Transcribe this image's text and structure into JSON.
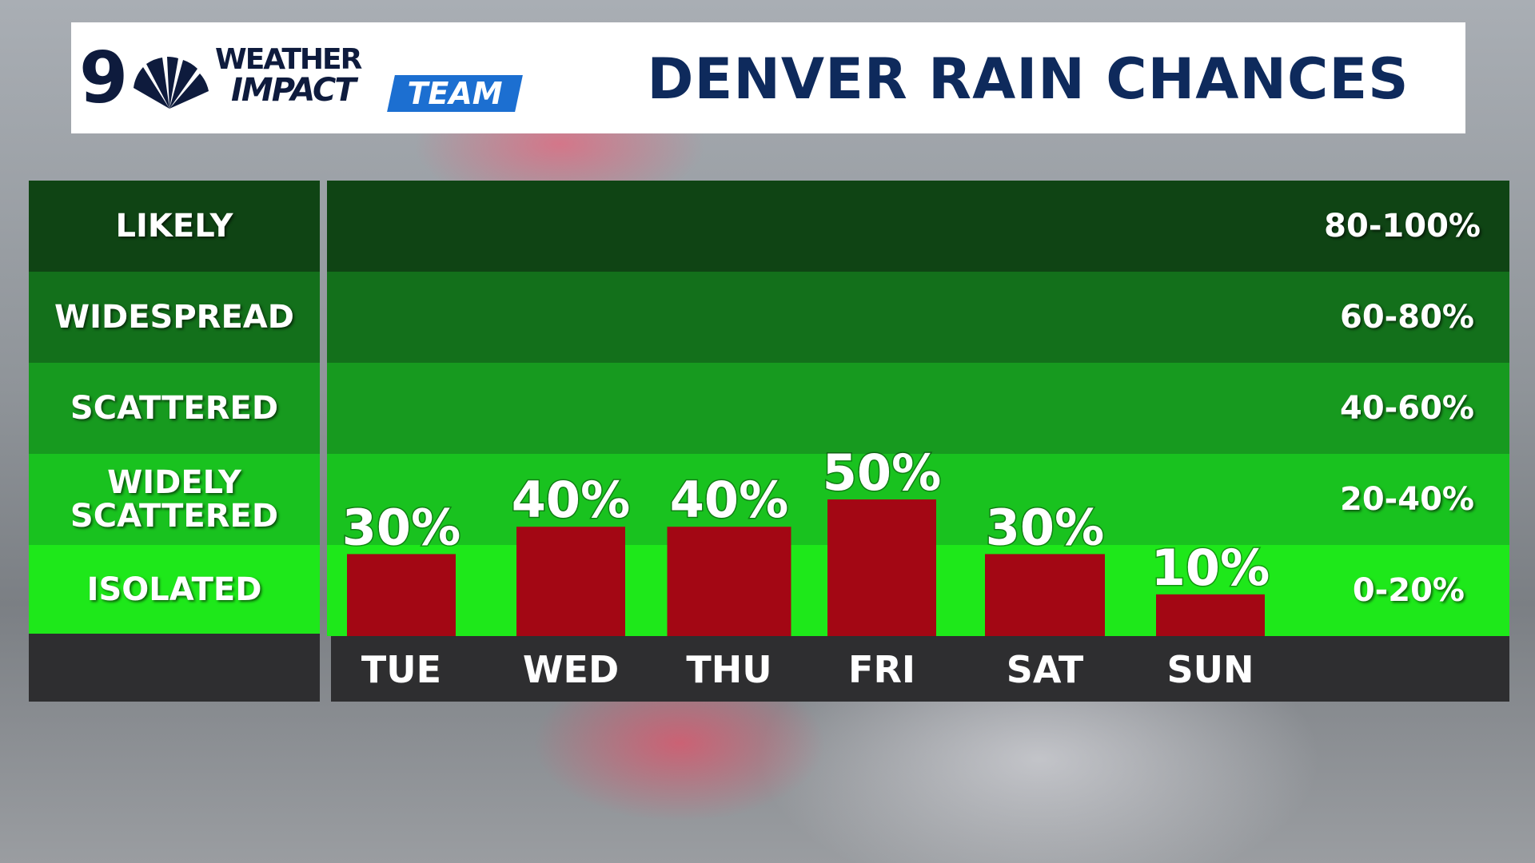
{
  "header": {
    "logo_number": "9",
    "logo_weather": "WEATHER",
    "logo_impact": "IMPACT",
    "logo_team": "TEAM",
    "title": "DENVER RAIN CHANCES"
  },
  "colors": {
    "likely": "#0f4414",
    "widespread": "#13701b",
    "scattered": "#179a1f",
    "widely_scattered": "#19c21f",
    "isolated": "#1ee81a",
    "bar": "#a30714",
    "footer": "#2e2e30"
  },
  "bands": [
    {
      "label": "LIKELY",
      "range": "80-100%"
    },
    {
      "label": "WIDESPREAD",
      "range": "60-80%"
    },
    {
      "label": "SCATTERED",
      "range": "40-60%"
    },
    {
      "label": "WIDELY SCATTERED",
      "range": "20-40%"
    },
    {
      "label": "ISOLATED",
      "range": "0-20%"
    }
  ],
  "chart_data": {
    "type": "bar",
    "title": "DENVER RAIN CHANCES",
    "categories": [
      "TUE",
      "WED",
      "THU",
      "FRI",
      "SAT",
      "SUN"
    ],
    "values": [
      30,
      40,
      40,
      50,
      30,
      10
    ],
    "value_labels": [
      "30%",
      "40%",
      "40%",
      "50%",
      "30%",
      "10%"
    ],
    "ylim": [
      0,
      100
    ],
    "grid": false,
    "legend": "none"
  }
}
